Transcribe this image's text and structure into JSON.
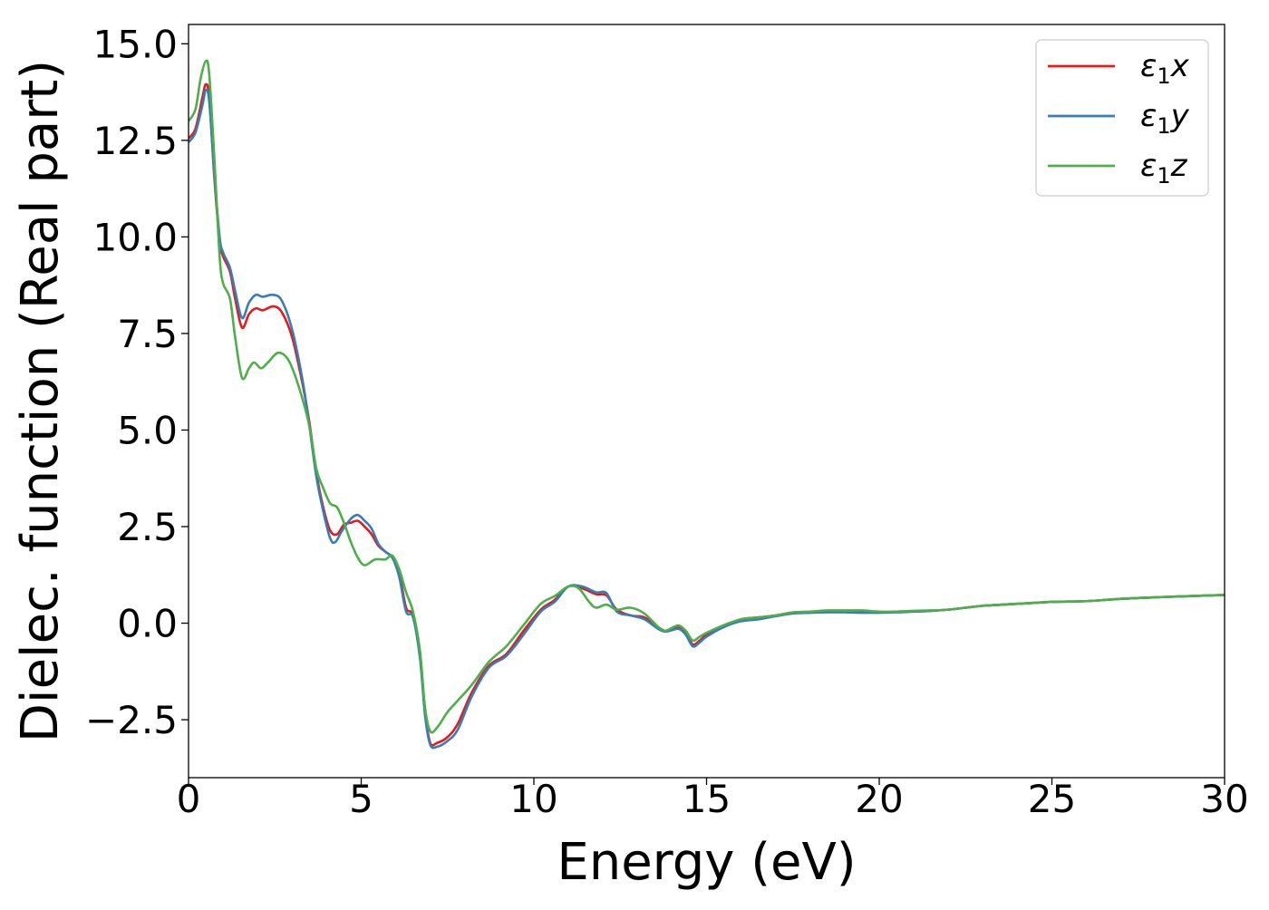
{
  "chart_data": {
    "type": "line",
    "xlabel": "Energy (eV)",
    "ylabel": "Dielec. function (Real part)",
    "xlim": [
      0,
      30
    ],
    "ylim": [
      -4,
      15.5
    ],
    "xticks": [
      0,
      5,
      10,
      15,
      20,
      25,
      30
    ],
    "xtick_labels": [
      "0",
      "5",
      "10",
      "15",
      "20",
      "25",
      "30"
    ],
    "yticks": [
      -2.5,
      0,
      2.5,
      5,
      7.5,
      10,
      12.5,
      15
    ],
    "ytick_labels": [
      "−2.5",
      "0.0",
      "2.5",
      "5.0",
      "7.5",
      "10.0",
      "12.5",
      "15.0"
    ],
    "grid": false,
    "legend_position": "top-right",
    "series": [
      {
        "name": "ε₁x",
        "legend": {
          "main": "ε",
          "sub": "1",
          "suffix": "x"
        },
        "color": "#e41a1c",
        "points": [
          [
            0,
            12.55
          ],
          [
            0.2,
            12.8
          ],
          [
            0.4,
            13.6
          ],
          [
            0.5,
            13.95
          ],
          [
            0.6,
            13.6
          ],
          [
            0.75,
            11.5
          ],
          [
            0.9,
            9.9
          ],
          [
            1.0,
            9.5
          ],
          [
            1.2,
            9.1
          ],
          [
            1.35,
            8.4
          ],
          [
            1.55,
            7.65
          ],
          [
            1.75,
            8.0
          ],
          [
            1.95,
            8.15
          ],
          [
            2.15,
            8.1
          ],
          [
            2.45,
            8.2
          ],
          [
            2.7,
            8.05
          ],
          [
            3.0,
            7.4
          ],
          [
            3.3,
            6.2
          ],
          [
            3.5,
            5.2
          ],
          [
            3.7,
            3.9
          ],
          [
            3.9,
            3.0
          ],
          [
            4.1,
            2.4
          ],
          [
            4.3,
            2.3
          ],
          [
            4.5,
            2.55
          ],
          [
            4.7,
            2.6
          ],
          [
            4.9,
            2.65
          ],
          [
            5.1,
            2.5
          ],
          [
            5.3,
            2.3
          ],
          [
            5.5,
            2.0
          ],
          [
            5.7,
            1.85
          ],
          [
            5.9,
            1.7
          ],
          [
            6.1,
            1.3
          ],
          [
            6.3,
            0.4
          ],
          [
            6.5,
            0.2
          ],
          [
            6.7,
            -0.8
          ],
          [
            6.85,
            -2.3
          ],
          [
            7.0,
            -3.1
          ],
          [
            7.2,
            -3.1
          ],
          [
            7.5,
            -2.95
          ],
          [
            7.8,
            -2.6
          ],
          [
            8.2,
            -1.8
          ],
          [
            8.7,
            -1.1
          ],
          [
            9.2,
            -0.8
          ],
          [
            9.7,
            -0.2
          ],
          [
            10.2,
            0.35
          ],
          [
            10.6,
            0.6
          ],
          [
            11.0,
            0.95
          ],
          [
            11.4,
            0.9
          ],
          [
            11.8,
            0.75
          ],
          [
            12.1,
            0.72
          ],
          [
            12.4,
            0.35
          ],
          [
            12.8,
            0.2
          ],
          [
            13.2,
            0.15
          ],
          [
            13.6,
            -0.1
          ],
          [
            13.8,
            -0.2
          ],
          [
            14.0,
            -0.15
          ],
          [
            14.2,
            -0.12
          ],
          [
            14.4,
            -0.25
          ],
          [
            14.6,
            -0.55
          ],
          [
            14.8,
            -0.45
          ],
          [
            15.0,
            -0.3
          ],
          [
            15.5,
            -0.1
          ],
          [
            16.0,
            0.1
          ],
          [
            16.5,
            0.15
          ],
          [
            17.0,
            0.2
          ],
          [
            17.5,
            0.28
          ],
          [
            18.0,
            0.28
          ],
          [
            18.5,
            0.3
          ],
          [
            19.0,
            0.3
          ],
          [
            19.5,
            0.3
          ],
          [
            20.0,
            0.28
          ],
          [
            20.5,
            0.3
          ],
          [
            21.0,
            0.3
          ],
          [
            21.5,
            0.32
          ],
          [
            22.0,
            0.35
          ],
          [
            22.5,
            0.4
          ],
          [
            23.0,
            0.45
          ],
          [
            24.0,
            0.5
          ],
          [
            25.0,
            0.55
          ],
          [
            26.0,
            0.57
          ],
          [
            27.0,
            0.63
          ],
          [
            28.0,
            0.67
          ],
          [
            29.0,
            0.7
          ],
          [
            30.0,
            0.73
          ]
        ]
      },
      {
        "name": "ε₁y",
        "legend": {
          "main": "ε",
          "sub": "1",
          "suffix": "y"
        },
        "color": "#377eb8",
        "points": [
          [
            0,
            12.45
          ],
          [
            0.2,
            12.7
          ],
          [
            0.4,
            13.4
          ],
          [
            0.5,
            13.8
          ],
          [
            0.6,
            13.5
          ],
          [
            0.75,
            11.6
          ],
          [
            0.9,
            10.0
          ],
          [
            1.0,
            9.6
          ],
          [
            1.2,
            9.2
          ],
          [
            1.35,
            8.6
          ],
          [
            1.55,
            7.9
          ],
          [
            1.75,
            8.3
          ],
          [
            1.95,
            8.5
          ],
          [
            2.15,
            8.45
          ],
          [
            2.45,
            8.5
          ],
          [
            2.7,
            8.35
          ],
          [
            3.0,
            7.6
          ],
          [
            3.3,
            6.3
          ],
          [
            3.5,
            5.1
          ],
          [
            3.7,
            3.8
          ],
          [
            3.9,
            2.9
          ],
          [
            4.1,
            2.2
          ],
          [
            4.25,
            2.1
          ],
          [
            4.45,
            2.4
          ],
          [
            4.7,
            2.7
          ],
          [
            4.9,
            2.8
          ],
          [
            5.1,
            2.65
          ],
          [
            5.3,
            2.45
          ],
          [
            5.5,
            2.05
          ],
          [
            5.7,
            1.85
          ],
          [
            5.9,
            1.7
          ],
          [
            6.1,
            1.2
          ],
          [
            6.3,
            0.3
          ],
          [
            6.5,
            0.15
          ],
          [
            6.7,
            -0.9
          ],
          [
            6.85,
            -2.4
          ],
          [
            7.0,
            -3.15
          ],
          [
            7.2,
            -3.2
          ],
          [
            7.5,
            -3.05
          ],
          [
            7.8,
            -2.75
          ],
          [
            8.2,
            -1.9
          ],
          [
            8.7,
            -1.15
          ],
          [
            9.2,
            -0.85
          ],
          [
            9.7,
            -0.3
          ],
          [
            10.2,
            0.3
          ],
          [
            10.6,
            0.55
          ],
          [
            11.0,
            0.95
          ],
          [
            11.4,
            0.95
          ],
          [
            11.8,
            0.8
          ],
          [
            12.1,
            0.78
          ],
          [
            12.4,
            0.3
          ],
          [
            12.8,
            0.2
          ],
          [
            13.2,
            0.1
          ],
          [
            13.6,
            -0.15
          ],
          [
            13.8,
            -0.22
          ],
          [
            14.0,
            -0.18
          ],
          [
            14.2,
            -0.15
          ],
          [
            14.4,
            -0.3
          ],
          [
            14.6,
            -0.6
          ],
          [
            14.8,
            -0.5
          ],
          [
            15.0,
            -0.35
          ],
          [
            15.5,
            -0.1
          ],
          [
            16.0,
            0.05
          ],
          [
            16.5,
            0.1
          ],
          [
            17.0,
            0.18
          ],
          [
            17.5,
            0.25
          ],
          [
            18.0,
            0.27
          ],
          [
            18.5,
            0.28
          ],
          [
            19.0,
            0.28
          ],
          [
            19.5,
            0.27
          ],
          [
            20.0,
            0.27
          ],
          [
            20.5,
            0.28
          ],
          [
            21.0,
            0.3
          ],
          [
            21.5,
            0.32
          ],
          [
            22.0,
            0.35
          ],
          [
            22.5,
            0.4
          ],
          [
            23.0,
            0.45
          ],
          [
            24.0,
            0.5
          ],
          [
            25.0,
            0.55
          ],
          [
            26.0,
            0.57
          ],
          [
            27.0,
            0.63
          ],
          [
            28.0,
            0.67
          ],
          [
            29.0,
            0.7
          ],
          [
            30.0,
            0.73
          ]
        ]
      },
      {
        "name": "ε₁z",
        "legend": {
          "main": "ε",
          "sub": "1",
          "suffix": "z"
        },
        "color": "#4daf4a",
        "points": [
          [
            0,
            13.0
          ],
          [
            0.2,
            13.3
          ],
          [
            0.35,
            14.1
          ],
          [
            0.5,
            14.55
          ],
          [
            0.6,
            14.2
          ],
          [
            0.75,
            12.0
          ],
          [
            0.9,
            9.5
          ],
          [
            1.0,
            8.8
          ],
          [
            1.2,
            8.4
          ],
          [
            1.35,
            7.4
          ],
          [
            1.55,
            6.35
          ],
          [
            1.75,
            6.6
          ],
          [
            1.9,
            6.75
          ],
          [
            2.1,
            6.6
          ],
          [
            2.3,
            6.75
          ],
          [
            2.6,
            7.0
          ],
          [
            2.9,
            6.8
          ],
          [
            3.2,
            6.1
          ],
          [
            3.5,
            5.1
          ],
          [
            3.7,
            4.0
          ],
          [
            3.9,
            3.5
          ],
          [
            4.1,
            3.1
          ],
          [
            4.3,
            3.0
          ],
          [
            4.5,
            2.6
          ],
          [
            4.7,
            2.1
          ],
          [
            4.9,
            1.7
          ],
          [
            5.1,
            1.5
          ],
          [
            5.4,
            1.65
          ],
          [
            5.7,
            1.65
          ],
          [
            5.9,
            1.75
          ],
          [
            6.1,
            1.4
          ],
          [
            6.3,
            0.8
          ],
          [
            6.5,
            0.3
          ],
          [
            6.7,
            -0.7
          ],
          [
            6.85,
            -2.2
          ],
          [
            7.0,
            -2.8
          ],
          [
            7.2,
            -2.7
          ],
          [
            7.5,
            -2.3
          ],
          [
            7.8,
            -2.0
          ],
          [
            8.2,
            -1.6
          ],
          [
            8.7,
            -1.0
          ],
          [
            9.2,
            -0.6
          ],
          [
            9.7,
            -0.05
          ],
          [
            10.2,
            0.5
          ],
          [
            10.6,
            0.7
          ],
          [
            11.0,
            0.95
          ],
          [
            11.3,
            0.9
          ],
          [
            11.6,
            0.55
          ],
          [
            11.8,
            0.4
          ],
          [
            12.1,
            0.48
          ],
          [
            12.4,
            0.35
          ],
          [
            12.8,
            0.4
          ],
          [
            13.2,
            0.25
          ],
          [
            13.6,
            -0.1
          ],
          [
            13.8,
            -0.2
          ],
          [
            14.0,
            -0.12
          ],
          [
            14.2,
            -0.06
          ],
          [
            14.4,
            -0.2
          ],
          [
            14.6,
            -0.45
          ],
          [
            14.8,
            -0.35
          ],
          [
            15.0,
            -0.25
          ],
          [
            15.5,
            -0.05
          ],
          [
            16.0,
            0.1
          ],
          [
            16.5,
            0.15
          ],
          [
            17.0,
            0.2
          ],
          [
            17.5,
            0.28
          ],
          [
            18.0,
            0.3
          ],
          [
            18.5,
            0.33
          ],
          [
            19.0,
            0.33
          ],
          [
            19.5,
            0.33
          ],
          [
            20.0,
            0.3
          ],
          [
            20.5,
            0.3
          ],
          [
            21.0,
            0.32
          ],
          [
            21.5,
            0.33
          ],
          [
            22.0,
            0.35
          ],
          [
            22.5,
            0.4
          ],
          [
            23.0,
            0.45
          ],
          [
            24.0,
            0.5
          ],
          [
            25.0,
            0.55
          ],
          [
            26.0,
            0.57
          ],
          [
            27.0,
            0.63
          ],
          [
            28.0,
            0.67
          ],
          [
            29.0,
            0.7
          ],
          [
            30.0,
            0.73
          ]
        ]
      }
    ]
  }
}
